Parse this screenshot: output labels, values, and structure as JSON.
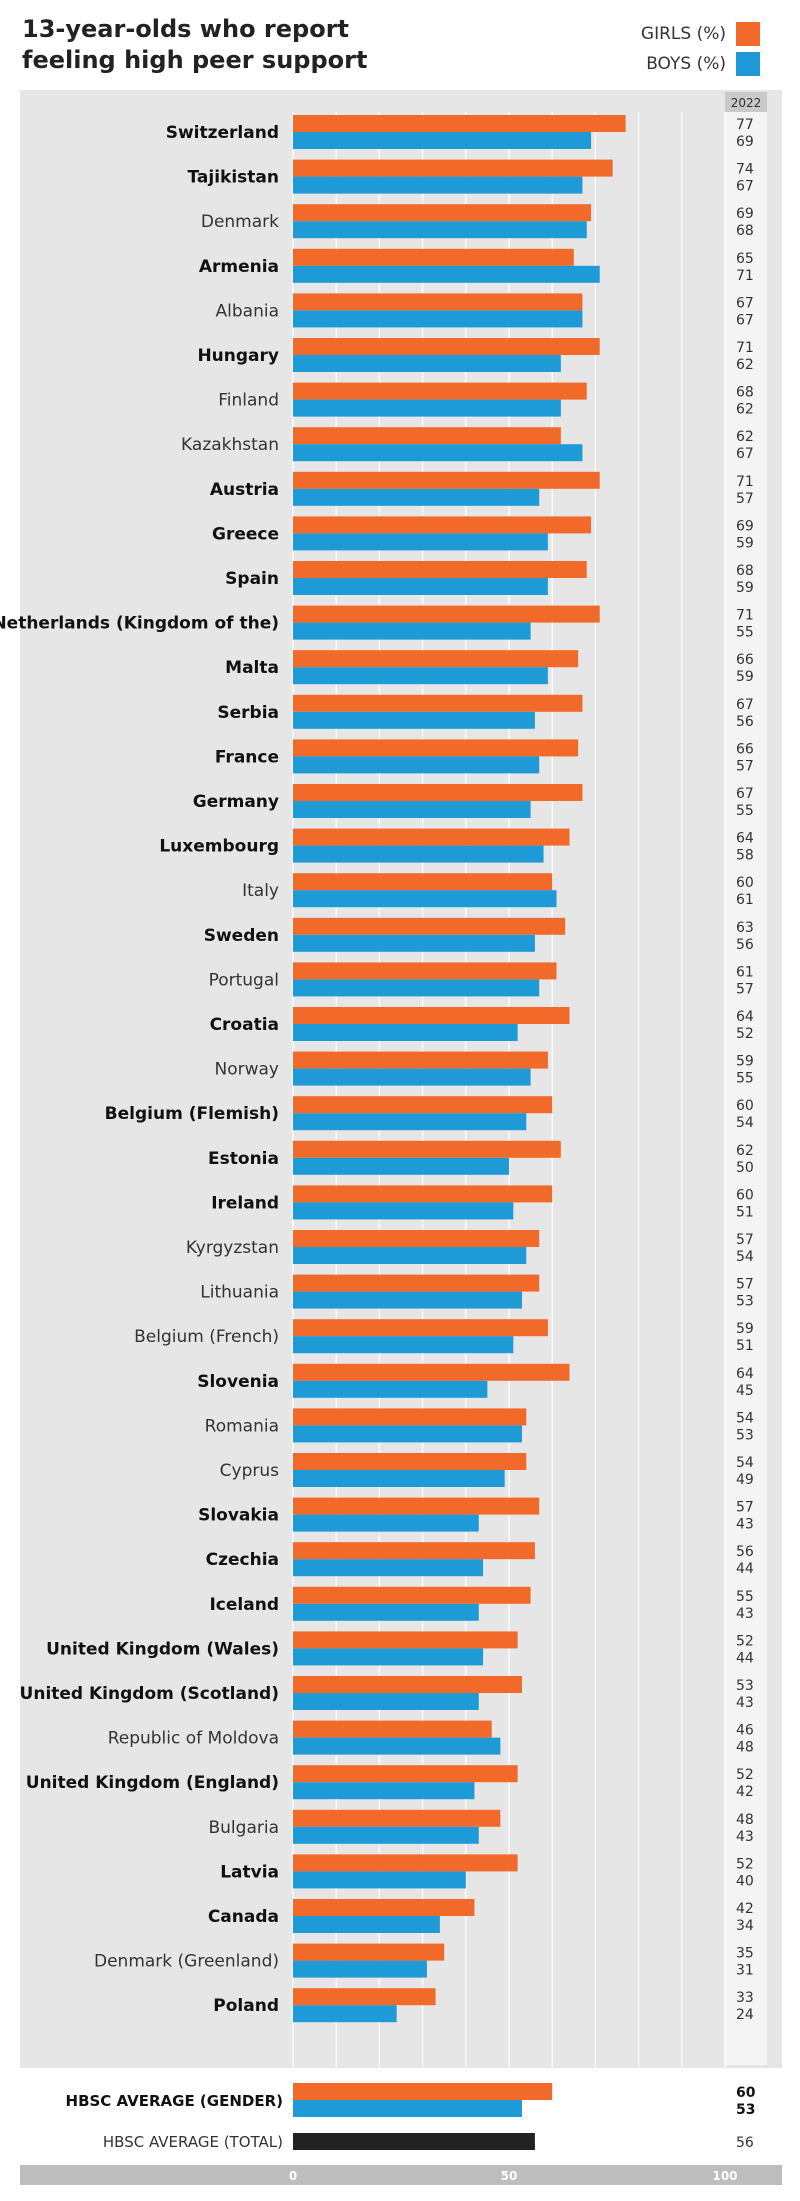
{
  "title": "13-year-olds who report feeling high peer support",
  "colors": {
    "girls": "#f26a2a",
    "boys": "#1e9ad6",
    "total": "#222222",
    "panel": "#e6e6e6",
    "axis_bar": "#bdbdbd",
    "value_col": "#f4f4f4"
  },
  "chart_data": {
    "type": "bar",
    "orientation": "horizontal",
    "title": "13-year-olds who report feeling high peer support",
    "value_column_header": "2022",
    "xlim": [
      0,
      100
    ],
    "x_ticks": [
      "0",
      "50",
      "100"
    ],
    "legend": {
      "placement": "top-right"
    },
    "series": [
      {
        "name": "GIRLS (%)",
        "color": "#f26a2a"
      },
      {
        "name": "BOYS (%)",
        "color": "#1e9ad6"
      }
    ],
    "categories": [
      {
        "name": "Switzerland",
        "bold": true,
        "girls": 77,
        "boys": 69
      },
      {
        "name": "Tajikistan",
        "bold": true,
        "girls": 74,
        "boys": 67
      },
      {
        "name": "Denmark",
        "bold": false,
        "girls": 69,
        "boys": 68
      },
      {
        "name": "Armenia",
        "bold": true,
        "girls": 65,
        "boys": 71
      },
      {
        "name": "Albania",
        "bold": false,
        "girls": 67,
        "boys": 67
      },
      {
        "name": "Hungary",
        "bold": true,
        "girls": 71,
        "boys": 62
      },
      {
        "name": "Finland",
        "bold": false,
        "girls": 68,
        "boys": 62
      },
      {
        "name": "Kazakhstan",
        "bold": false,
        "girls": 62,
        "boys": 67
      },
      {
        "name": "Austria",
        "bold": true,
        "girls": 71,
        "boys": 57
      },
      {
        "name": "Greece",
        "bold": true,
        "girls": 69,
        "boys": 59
      },
      {
        "name": "Spain",
        "bold": true,
        "girls": 68,
        "boys": 59
      },
      {
        "name": "Netherlands (Kingdom of the)",
        "bold": true,
        "girls": 71,
        "boys": 55
      },
      {
        "name": "Malta",
        "bold": true,
        "girls": 66,
        "boys": 59
      },
      {
        "name": "Serbia",
        "bold": true,
        "girls": 67,
        "boys": 56
      },
      {
        "name": "France",
        "bold": true,
        "girls": 66,
        "boys": 57
      },
      {
        "name": "Germany",
        "bold": true,
        "girls": 67,
        "boys": 55
      },
      {
        "name": "Luxembourg",
        "bold": true,
        "girls": 64,
        "boys": 58
      },
      {
        "name": "Italy",
        "bold": false,
        "girls": 60,
        "boys": 61
      },
      {
        "name": "Sweden",
        "bold": true,
        "girls": 63,
        "boys": 56
      },
      {
        "name": "Portugal",
        "bold": false,
        "girls": 61,
        "boys": 57
      },
      {
        "name": "Croatia",
        "bold": true,
        "girls": 64,
        "boys": 52
      },
      {
        "name": "Norway",
        "bold": false,
        "girls": 59,
        "boys": 55
      },
      {
        "name": "Belgium (Flemish)",
        "bold": true,
        "girls": 60,
        "boys": 54
      },
      {
        "name": "Estonia",
        "bold": true,
        "girls": 62,
        "boys": 50
      },
      {
        "name": "Ireland",
        "bold": true,
        "girls": 60,
        "boys": 51
      },
      {
        "name": "Kyrgyzstan",
        "bold": false,
        "girls": 57,
        "boys": 54
      },
      {
        "name": "Lithuania",
        "bold": false,
        "girls": 57,
        "boys": 53
      },
      {
        "name": "Belgium (French)",
        "bold": false,
        "girls": 59,
        "boys": 51
      },
      {
        "name": "Slovenia",
        "bold": true,
        "girls": 64,
        "boys": 45
      },
      {
        "name": "Romania",
        "bold": false,
        "girls": 54,
        "boys": 53
      },
      {
        "name": "Cyprus",
        "bold": false,
        "girls": 54,
        "boys": 49
      },
      {
        "name": "Slovakia",
        "bold": true,
        "girls": 57,
        "boys": 43
      },
      {
        "name": "Czechia",
        "bold": true,
        "girls": 56,
        "boys": 44
      },
      {
        "name": "Iceland",
        "bold": true,
        "girls": 55,
        "boys": 43
      },
      {
        "name": "United Kingdom (Wales)",
        "bold": true,
        "girls": 52,
        "boys": 44
      },
      {
        "name": "United Kingdom (Scotland)",
        "bold": true,
        "girls": 53,
        "boys": 43
      },
      {
        "name": "Republic of Moldova",
        "bold": false,
        "girls": 46,
        "boys": 48
      },
      {
        "name": "United Kingdom (England)",
        "bold": true,
        "girls": 52,
        "boys": 42
      },
      {
        "name": "Bulgaria",
        "bold": false,
        "girls": 48,
        "boys": 43
      },
      {
        "name": "Latvia",
        "bold": true,
        "girls": 52,
        "boys": 40
      },
      {
        "name": "Canada",
        "bold": true,
        "girls": 42,
        "boys": 34
      },
      {
        "name": "Denmark (Greenland)",
        "bold": false,
        "girls": 35,
        "boys": 31
      },
      {
        "name": "Poland",
        "bold": true,
        "girls": 33,
        "boys": 24
      }
    ],
    "averages": [
      {
        "name": "HBSC AVERAGE (GENDER)",
        "bold": true,
        "girls": 60,
        "boys": 53
      },
      {
        "name": "HBSC AVERAGE (TOTAL)",
        "bold": false,
        "total": 56
      }
    ]
  }
}
